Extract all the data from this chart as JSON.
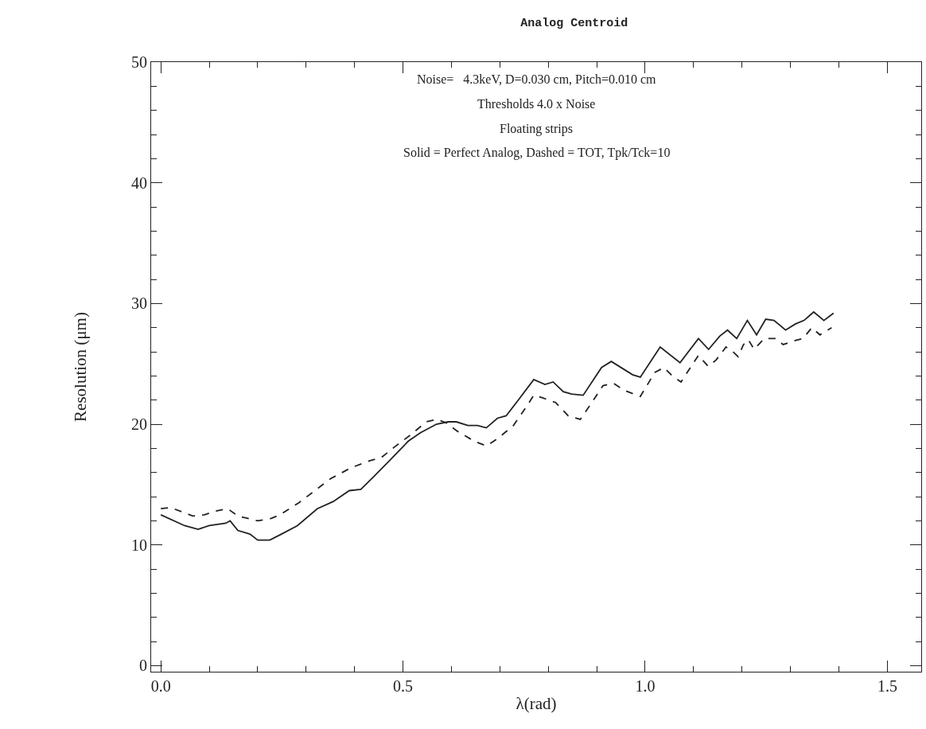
{
  "chart_data": {
    "type": "line",
    "title": "Analog Centroid",
    "xlabel": "λ(rad)",
    "ylabel": "Resolution (μm)",
    "annotations": [
      "Noise=   4.3keV, D=0.030 cm, Pitch=0.010 cm",
      "Thresholds 4.0 x Noise",
      "Floating strips",
      "Solid = Perfect Analog, Dashed = TOT, Tpk/Tck=10"
    ],
    "xlim": [
      -0.02,
      1.57
    ],
    "ylim": [
      -0.5,
      50
    ],
    "xticks": [
      {
        "value": 0,
        "label": "0.0"
      },
      {
        "value": 0.5,
        "label": "0.5"
      },
      {
        "value": 1,
        "label": "1.0"
      },
      {
        "value": 1.5,
        "label": "1.5"
      }
    ],
    "yticks": [
      0,
      10,
      20,
      30,
      40,
      50
    ],
    "marker": "none",
    "series": [
      {
        "color": "#222222",
        "line_style": "solid",
        "x": [
          0,
          0.049,
          0.077,
          0.1,
          0.134,
          0.143,
          0.159,
          0.184,
          0.2,
          0.225,
          0.249,
          0.282,
          0.323,
          0.356,
          0.389,
          0.413,
          0.438,
          0.47,
          0.511,
          0.536,
          0.569,
          0.593,
          0.61,
          0.634,
          0.654,
          0.672,
          0.695,
          0.713,
          0.738,
          0.77,
          0.793,
          0.81,
          0.831,
          0.848,
          0.872,
          0.91,
          0.93,
          0.974,
          0.99,
          1.031,
          1.072,
          1.11,
          1.131,
          1.154,
          1.17,
          1.189,
          1.211,
          1.23,
          1.249,
          1.266,
          1.29,
          1.31,
          1.328,
          1.348,
          1.369,
          1.389
        ],
        "values": [
          12.5,
          11.6,
          11.3,
          11.6,
          11.8,
          12.0,
          11.2,
          10.9,
          10.4,
          10.4,
          10.9,
          11.6,
          13.0,
          13.6,
          14.5,
          14.6,
          15.6,
          16.9,
          18.6,
          19.3,
          20.0,
          20.2,
          20.2,
          19.9,
          19.9,
          19.7,
          20.5,
          20.7,
          22.0,
          23.7,
          23.3,
          23.5,
          22.7,
          22.5,
          22.4,
          24.7,
          25.2,
          24.1,
          23.9,
          26.4,
          25.1,
          27.1,
          26.2,
          27.3,
          27.8,
          27.1,
          28.6,
          27.4,
          28.7,
          28.6,
          27.8,
          28.3,
          28.6,
          29.3,
          28.6,
          29.2
        ]
      },
      {
        "color": "#222222",
        "line_style": "dashed",
        "x": [
          0,
          0.02,
          0.066,
          0.09,
          0.113,
          0.138,
          0.159,
          0.2,
          0.228,
          0.246,
          0.285,
          0.318,
          0.351,
          0.393,
          0.433,
          0.454,
          0.482,
          0.515,
          0.548,
          0.57,
          0.59,
          0.613,
          0.647,
          0.672,
          0.695,
          0.728,
          0.754,
          0.77,
          0.787,
          0.815,
          0.841,
          0.866,
          0.89,
          0.913,
          0.934,
          0.957,
          0.99,
          1.02,
          1.039,
          1.056,
          1.074,
          1.11,
          1.13,
          1.146,
          1.167,
          1.179,
          1.192,
          1.203,
          1.213,
          1.225,
          1.246,
          1.269,
          1.285,
          1.307,
          1.326,
          1.344,
          1.361,
          1.385
        ],
        "values": [
          13.0,
          13.1,
          12.4,
          12.5,
          12.8,
          13.0,
          12.4,
          12.0,
          12.2,
          12.5,
          13.5,
          14.5,
          15.5,
          16.4,
          17.0,
          17.2,
          18.1,
          19.1,
          20.2,
          20.4,
          20.1,
          19.4,
          18.6,
          18.2,
          18.8,
          19.9,
          21.4,
          22.4,
          22.2,
          21.8,
          20.7,
          20.4,
          21.8,
          23.2,
          23.4,
          22.8,
          22.3,
          24.3,
          24.7,
          24.0,
          23.5,
          25.7,
          24.8,
          25.3,
          26.4,
          26.1,
          25.6,
          26.6,
          27.0,
          26.2,
          27.1,
          27.1,
          26.6,
          26.9,
          27.1,
          28.0,
          27.4,
          28.0
        ]
      }
    ]
  }
}
